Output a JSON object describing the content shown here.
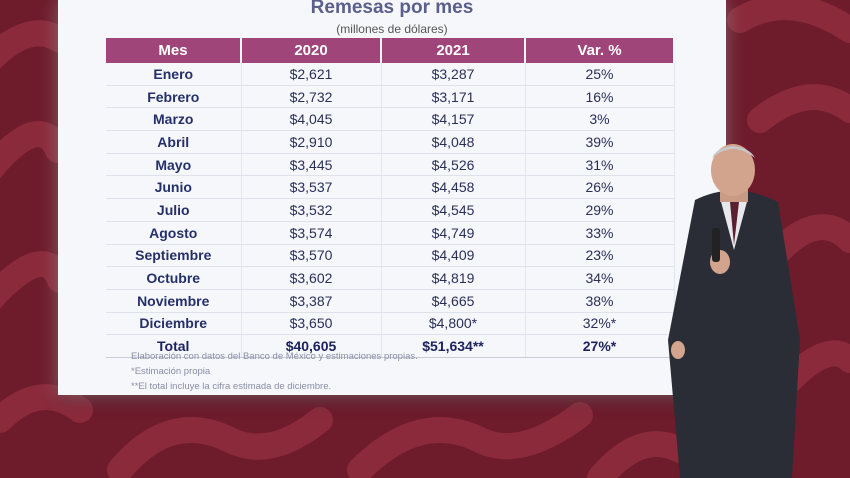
{
  "slide": {
    "title": "Remesas por mes",
    "subtitle": "(millones de dólares)",
    "headers": [
      "Mes",
      "2020",
      "2021",
      "Var. %"
    ],
    "rows": [
      [
        "Enero",
        "$2,621",
        "$3,287",
        "25%"
      ],
      [
        "Febrero",
        "$2,732",
        "$3,171",
        "16%"
      ],
      [
        "Marzo",
        "$4,045",
        "$4,157",
        "3%"
      ],
      [
        "Abril",
        "$2,910",
        "$4,048",
        "39%"
      ],
      [
        "Mayo",
        "$3,445",
        "$4,526",
        "31%"
      ],
      [
        "Junio",
        "$3,537",
        "$4,458",
        "26%"
      ],
      [
        "Julio",
        "$3,532",
        "$4,545",
        "29%"
      ],
      [
        "Agosto",
        "$3,574",
        "$4,749",
        "33%"
      ],
      [
        "Septiembre",
        "$3,570",
        "$4,409",
        "23%"
      ],
      [
        "Octubre",
        "$3,602",
        "$4,819",
        "34%"
      ],
      [
        "Noviembre",
        "$3,387",
        "$4,665",
        "38%"
      ],
      [
        "Diciembre",
        "$3,650",
        "$4,800*",
        "32%*"
      ]
    ],
    "total": [
      "Total",
      "$40,605",
      "$51,634**",
      "27%*"
    ],
    "notes": [
      "Elaboración con datos del Banco de México y estimaciones propias.",
      "*Estimación propia",
      "**El total incluye la cifra estimada de diciembre."
    ]
  },
  "colors": {
    "background": "#6e1b2c",
    "pattern": "#8b2a3b",
    "header": "#a0457a",
    "title": "#5a5f8c"
  }
}
